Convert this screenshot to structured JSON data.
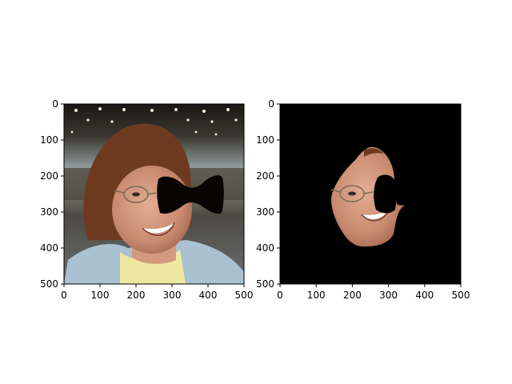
{
  "chart_data": [
    {
      "type": "image",
      "title": "",
      "xlabel": "",
      "ylabel": "",
      "xlim": [
        0,
        500
      ],
      "ylim": [
        500,
        0
      ],
      "xticks": [
        0,
        100,
        200,
        300,
        400,
        500
      ],
      "yticks": [
        0,
        100,
        200,
        300,
        400,
        500
      ],
      "y_inverted": true,
      "image": {
        "content": "photo of a smiling woman with glasses and brown hair in a convention hall, with a black bow-tie-shaped mask covering part of her right cheek",
        "mask_color": "#0a0303"
      }
    },
    {
      "type": "image",
      "title": "",
      "xlabel": "",
      "ylabel": "",
      "xlim": [
        0,
        500
      ],
      "ylim": [
        500,
        0
      ],
      "xticks": [
        0,
        100,
        200,
        300,
        400,
        500
      ],
      "yticks": [
        0,
        100,
        200,
        300,
        400,
        500
      ],
      "y_inverted": true,
      "image": {
        "content": "segmented face region of the same woman on a black background, with a black mask hole near the right eye",
        "background_color": "#000000"
      }
    }
  ],
  "colors": {
    "axis": "#000000",
    "background": "#ffffff"
  }
}
